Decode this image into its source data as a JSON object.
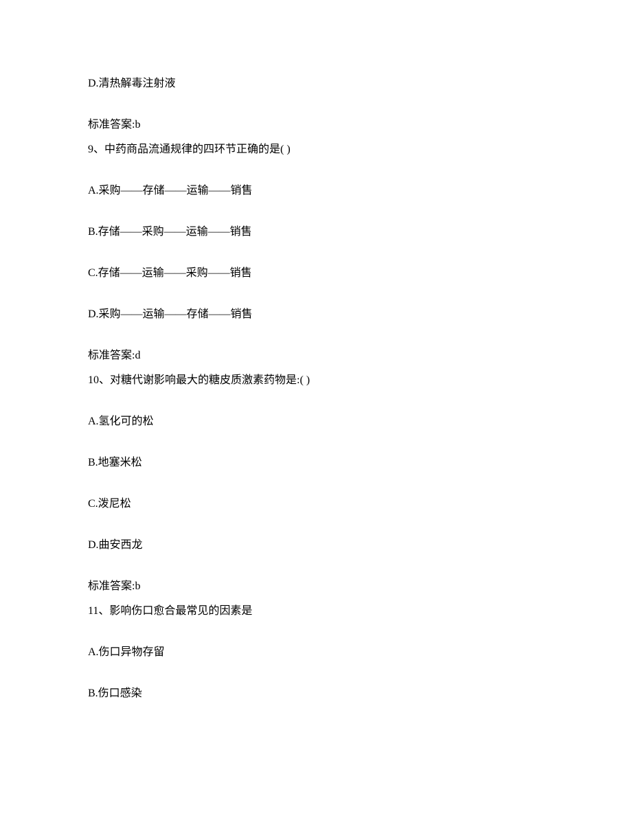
{
  "page": {
    "background_color": "#ffffff",
    "text_color": "#000000",
    "font_family": "SimSun",
    "font_size": 16
  },
  "lines": {
    "opt_8d": "D.清热解毒注射液",
    "ans_8": "标准答案:b",
    "q9": "9、中药商品流通规律的四环节正确的是( )",
    "opt_9a": "A.采购——存储——运输——销售",
    "opt_9b": "B.存储——采购——运输——销售",
    "opt_9c": "C.存储——运输——采购——销售",
    "opt_9d": "D.采购——运输——存储——销售",
    "ans_9": "标准答案:d",
    "q10": "10、对糖代谢影响最大的糖皮质激素药物是:( )",
    "opt_10a": "A.氢化可的松",
    "opt_10b": "B.地塞米松",
    "opt_10c": "C.泼尼松",
    "opt_10d": "D.曲安西龙",
    "ans_10": "标准答案:b",
    "q11": "11、影响伤口愈合最常见的因素是",
    "opt_11a": "A.伤口异物存留",
    "opt_11b": "B.伤口感染"
  }
}
